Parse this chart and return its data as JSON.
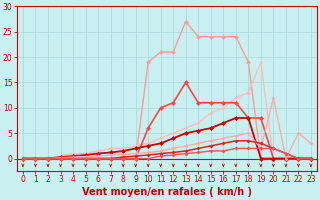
{
  "title": "",
  "xlabel": "Vent moyen/en rafales ( km/h )",
  "xlim_min": -0.5,
  "xlim_max": 23.5,
  "ylim_min": 0,
  "ylim_max": 30,
  "xticks": [
    0,
    1,
    2,
    3,
    4,
    5,
    6,
    7,
    8,
    9,
    10,
    11,
    12,
    13,
    14,
    15,
    16,
    17,
    18,
    19,
    20,
    21,
    22,
    23
  ],
  "yticks": [
    0,
    5,
    10,
    15,
    20,
    25,
    30
  ],
  "bg_color": "#c8f0f0",
  "grid_color": "#a8d8d8",
  "xlabel_color": "#cc0000",
  "xlabel_fontsize": 7,
  "tick_fontsize": 5.5,
  "tick_color": "#cc0000",
  "curves": [
    {
      "name": "light_pink_peak27",
      "color": "#ff9999",
      "lw": 1.0,
      "ms": 2.5,
      "x": [
        0,
        1,
        2,
        3,
        4,
        5,
        6,
        7,
        8,
        9,
        10,
        11,
        12,
        13,
        14,
        15,
        16,
        17,
        18,
        19,
        20,
        21,
        22,
        23
      ],
      "y": [
        0,
        0,
        0,
        0,
        0,
        0,
        0,
        0,
        0,
        0,
        19,
        21,
        21,
        27,
        24,
        24,
        24,
        24,
        19,
        0,
        0,
        0,
        0,
        0
      ]
    },
    {
      "name": "light_pink_diagonal_high",
      "color": "#ffbbbb",
      "lw": 1.0,
      "ms": 2.0,
      "x": [
        0,
        1,
        2,
        3,
        4,
        5,
        6,
        7,
        8,
        9,
        10,
        11,
        12,
        13,
        14,
        15,
        16,
        17,
        18,
        19,
        20,
        21,
        22,
        23
      ],
      "y": [
        0,
        0,
        0,
        0.5,
        1,
        1,
        1.5,
        2,
        2,
        2.5,
        3,
        4,
        5,
        6,
        7,
        9,
        10,
        12,
        13,
        19,
        0,
        0,
        0,
        0
      ]
    },
    {
      "name": "medium_red_peak15",
      "color": "#ff4444",
      "lw": 1.2,
      "ms": 2.5,
      "x": [
        0,
        1,
        2,
        3,
        4,
        5,
        6,
        7,
        8,
        9,
        10,
        11,
        12,
        13,
        14,
        15,
        16,
        17,
        18,
        19,
        20,
        21,
        22,
        23
      ],
      "y": [
        0,
        0,
        0,
        0,
        0,
        0,
        0,
        0,
        0,
        0,
        6,
        10,
        11,
        15,
        11,
        11,
        11,
        11,
        8,
        8,
        0,
        0,
        0,
        0
      ]
    },
    {
      "name": "dark_red_diagonal",
      "color": "#cc0000",
      "lw": 1.3,
      "ms": 2.5,
      "x": [
        0,
        1,
        2,
        3,
        4,
        5,
        6,
        7,
        8,
        9,
        10,
        11,
        12,
        13,
        14,
        15,
        16,
        17,
        18,
        19,
        20,
        21,
        22,
        23
      ],
      "y": [
        0,
        0,
        0,
        0.3,
        0.5,
        0.7,
        1,
        1.2,
        1.5,
        2,
        2.5,
        3,
        4,
        5,
        5.5,
        6,
        7,
        8,
        8,
        0,
        0,
        0,
        0,
        0
      ]
    },
    {
      "name": "pink_diagonal_medium",
      "color": "#ffaaaa",
      "lw": 1.0,
      "ms": 2.0,
      "x": [
        0,
        1,
        2,
        3,
        4,
        5,
        6,
        7,
        8,
        9,
        10,
        11,
        12,
        13,
        14,
        15,
        16,
        17,
        18,
        19,
        20,
        21,
        22,
        23
      ],
      "y": [
        0,
        0,
        0,
        0.2,
        0.3,
        0.4,
        0.5,
        0.7,
        0.8,
        1,
        1.2,
        1.5,
        2,
        2.5,
        3,
        3.5,
        4,
        4.5,
        5,
        2,
        12,
        0,
        5,
        3
      ]
    },
    {
      "name": "red_flat_low",
      "color": "#dd2222",
      "lw": 1.1,
      "ms": 2.0,
      "x": [
        0,
        1,
        2,
        3,
        4,
        5,
        6,
        7,
        8,
        9,
        10,
        11,
        12,
        13,
        14,
        15,
        16,
        17,
        18,
        19,
        20,
        21,
        22,
        23
      ],
      "y": [
        0,
        0,
        0,
        0,
        0,
        0,
        0,
        0,
        0.3,
        0.5,
        0.7,
        1,
        1.2,
        1.5,
        2,
        2.5,
        3,
        3.5,
        3.5,
        3,
        2,
        1,
        0,
        0
      ]
    },
    {
      "name": "flattest_bottom",
      "color": "#ee5555",
      "lw": 1.0,
      "ms": 2.0,
      "x": [
        0,
        1,
        2,
        3,
        4,
        5,
        6,
        7,
        8,
        9,
        10,
        11,
        12,
        13,
        14,
        15,
        16,
        17,
        18,
        19,
        20,
        21,
        22,
        23
      ],
      "y": [
        0,
        0,
        0,
        0,
        0,
        0,
        0,
        0,
        0,
        0,
        0,
        0.5,
        0.7,
        1,
        1.2,
        1.5,
        1.5,
        2,
        2,
        2,
        2,
        1,
        0,
        0
      ]
    }
  ],
  "arrow_color": "#cc0000"
}
